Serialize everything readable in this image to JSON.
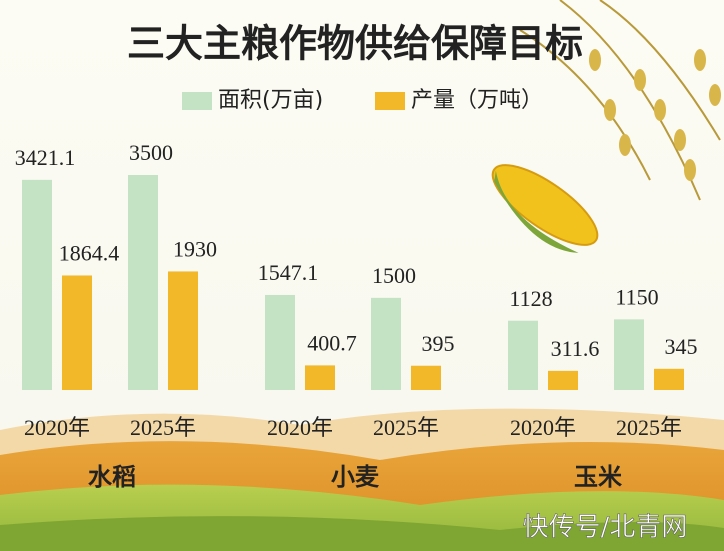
{
  "chart_data": {
    "type": "bar",
    "title": "三大主粮作物供给保障目标",
    "groups": [
      "水稻",
      "小麦",
      "玉米"
    ],
    "categories": [
      "2020年",
      "2025年",
      "2020年",
      "2025年",
      "2020年",
      "2025年"
    ],
    "series": [
      {
        "name": "面积(万亩)",
        "color": "#c4e3c4",
        "values": [
          3421.1,
          3500,
          1547.1,
          1500,
          1128,
          1150
        ]
      },
      {
        "name": "产量（万吨）",
        "color": "#f2b82a",
        "values": [
          1864.4,
          1930,
          400.7,
          395,
          311.6,
          345
        ]
      }
    ],
    "watermark": "快传号/北青网"
  }
}
